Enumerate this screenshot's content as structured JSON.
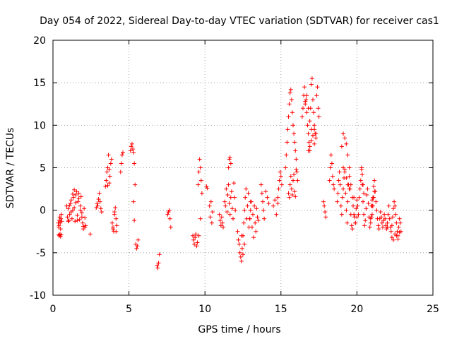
{
  "chart_data": {
    "type": "scatter",
    "title": "Day 054 of 2022, Sidereal Day-to-day VTEC variation (SDTVAR) for receiver cas1",
    "xlabel": "GPS time / hours",
    "ylabel": "SDTVAR / TECUs",
    "xlim": [
      0,
      25
    ],
    "ylim": [
      -10,
      20
    ],
    "xticks": [
      "0",
      "5",
      "10",
      "15",
      "20",
      "25"
    ],
    "yticks": [
      "-10",
      "-5",
      "0",
      "5",
      "10",
      "15",
      "20"
    ],
    "grid": true,
    "marker": "+",
    "color": "#ff0000",
    "series": [
      {
        "name": "SDTVAR",
        "x": [
          0.35,
          0.38,
          0.4,
          0.42,
          0.45,
          0.48,
          0.5,
          0.52,
          0.55,
          0.58,
          0.38,
          0.42,
          0.46,
          0.5,
          0.54,
          0.9,
          0.95,
          1.0,
          1.05,
          1.1,
          1.15,
          1.2,
          1.25,
          1.3,
          1.35,
          1.4,
          1.45,
          1.5,
          1.55,
          1.6,
          1.65,
          1.7,
          1.75,
          1.8,
          1.85,
          1.9,
          1.95,
          2.0,
          2.05,
          2.1,
          2.15,
          1.0,
          1.1,
          1.2,
          1.3,
          1.4,
          1.5,
          1.6,
          1.7,
          1.8,
          1.9,
          2.0,
          2.1,
          2.45,
          2.85,
          2.9,
          2.95,
          3.0,
          3.05,
          3.1,
          3.15,
          3.2,
          3.45,
          3.5,
          3.55,
          3.6,
          3.65,
          3.7,
          3.75,
          3.8,
          3.85,
          3.6,
          3.7,
          3.9,
          3.95,
          4.0,
          4.05,
          4.1,
          4.15,
          4.2,
          3.95,
          4.05,
          4.15,
          4.45,
          4.5,
          4.55,
          4.6,
          5.1,
          5.15,
          5.2,
          5.25,
          5.3,
          5.35,
          5.4,
          5.3,
          5.35,
          5.45,
          5.5,
          5.55,
          5.6,
          6.85,
          6.9,
          6.95,
          7.0,
          7.55,
          7.6,
          7.65,
          7.7,
          7.75,
          9.2,
          9.25,
          9.3,
          9.35,
          9.4,
          9.45,
          9.5,
          9.55,
          9.6,
          9.65,
          9.7,
          9.75,
          9.8,
          9.6,
          9.7,
          10.1,
          10.15,
          10.3,
          10.35,
          10.4,
          10.45,
          10.5,
          10.95,
          11.0,
          11.05,
          11.1,
          11.15,
          11.2,
          11.3,
          11.35,
          11.4,
          11.45,
          11.5,
          11.55,
          11.6,
          11.65,
          11.7,
          11.75,
          11.8,
          11.85,
          11.9,
          11.95,
          12.0,
          11.55,
          11.6,
          11.65,
          11.7,
          12.15,
          12.2,
          12.25,
          12.3,
          12.35,
          12.4,
          12.45,
          12.5,
          12.55,
          12.6,
          12.65,
          12.7,
          12.75,
          12.8,
          12.85,
          12.9,
          12.95,
          13.0,
          12.4,
          12.5,
          12.6,
          12.95,
          13.0,
          13.05,
          13.1,
          13.15,
          13.2,
          13.25,
          13.3,
          13.35,
          13.4,
          13.45,
          13.5,
          13.7,
          13.75,
          13.8,
          13.85,
          13.9,
          14.0,
          14.1,
          14.2,
          14.5,
          14.6,
          14.7,
          14.8,
          14.8,
          14.85,
          14.9,
          14.95,
          15.0,
          15.05,
          15.3,
          15.35,
          15.4,
          15.45,
          15.5,
          15.55,
          15.6,
          15.65,
          15.7,
          15.75,
          15.8,
          15.85,
          15.9,
          15.95,
          16.0,
          16.05,
          16.1,
          15.5,
          15.55,
          15.6,
          15.65,
          15.7,
          15.75,
          15.8,
          15.85,
          15.9,
          15.95,
          16.0,
          16.4,
          16.45,
          16.5,
          16.55,
          16.6,
          16.65,
          16.7,
          16.75,
          16.8,
          16.85,
          16.9,
          16.95,
          17.0,
          17.05,
          17.1,
          17.15,
          17.2,
          17.25,
          17.3,
          17.35,
          17.4,
          17.45,
          17.5,
          16.6,
          16.7,
          16.8,
          16.9,
          17.0,
          17.1,
          17.2,
          17.3,
          16.8,
          16.9,
          17.0,
          17.1,
          17.2,
          17.8,
          17.85,
          17.9,
          17.95,
          18.2,
          18.25,
          18.3,
          18.35,
          18.4,
          18.45,
          18.5,
          18.7,
          18.75,
          18.8,
          18.85,
          18.9,
          18.95,
          19.0,
          19.05,
          19.1,
          19.15,
          19.2,
          19.25,
          19.3,
          19.35,
          19.4,
          19.45,
          19.5,
          19.55,
          19.6,
          19.65,
          19.7,
          19.75,
          19.8,
          19.85,
          19.9,
          19.95,
          20.0,
          19.0,
          19.1,
          19.2,
          19.3,
          19.4,
          19.5,
          19.6,
          19.7,
          19.8,
          19.9,
          20.0,
          19.1,
          19.2,
          19.3,
          19.4,
          19.5,
          20.05,
          20.1,
          20.15,
          20.2,
          20.25,
          20.3,
          20.35,
          20.4,
          20.45,
          20.5,
          20.55,
          20.6,
          20.65,
          20.7,
          20.75,
          20.8,
          20.85,
          20.9,
          20.95,
          21.0,
          20.3,
          20.35,
          20.4,
          20.45,
          20.9,
          20.95,
          21.0,
          21.05,
          21.1,
          21.15,
          21.2,
          21.25,
          21.3,
          21.35,
          21.4,
          21.45,
          21.5,
          21.55,
          21.6,
          21.65,
          21.7,
          21.75,
          21.8,
          21.85,
          21.9,
          21.95,
          22.0,
          21.0,
          21.05,
          21.1,
          21.15,
          22.0,
          22.05,
          22.1,
          22.15,
          22.2,
          22.25,
          22.3,
          22.35,
          22.4,
          22.45,
          22.5,
          22.55,
          22.6,
          22.65,
          22.7,
          22.75,
          22.8,
          22.85,
          22.9,
          22.3,
          22.4,
          22.5,
          22.6,
          22.7,
          22.8
        ],
        "y": [
          -1.5,
          -2.0,
          -1.8,
          -1.2,
          -0.8,
          -1.5,
          -2.2,
          -1.0,
          -0.5,
          -1.3,
          -2.9,
          -3.0,
          -2.8,
          -3.1,
          -2.9,
          0.5,
          -0.8,
          0.2,
          -1.2,
          -0.5,
          0.8,
          1.2,
          -1.0,
          0.0,
          1.5,
          0.3,
          -1.3,
          1.8,
          2.2,
          -0.6,
          1.0,
          2.0,
          -1.1,
          0.5,
          1.6,
          -0.3,
          -1.5,
          -2.2,
          0.2,
          -0.9,
          -1.8,
          -1.3,
          0.6,
          -0.2,
          1.9,
          2.4,
          0.9,
          -1.2,
          1.4,
          0.0,
          -0.8,
          -1.9,
          -2.0,
          -2.8,
          0.3,
          0.8,
          0.5,
          1.3,
          2.0,
          1.0,
          0.2,
          -0.2,
          2.8,
          3.5,
          4.5,
          5.0,
          6.5,
          3.2,
          4.0,
          5.5,
          6.0,
          2.9,
          4.8,
          -1.5,
          -2.0,
          -2.5,
          -0.5,
          0.3,
          -1.0,
          -1.8,
          -2.2,
          -0.2,
          -2.5,
          4.5,
          5.5,
          6.5,
          6.8,
          7.0,
          7.5,
          7.8,
          7.2,
          6.8,
          5.5,
          3.0,
          1.0,
          -1.2,
          -4.0,
          -4.5,
          -4.2,
          -3.5,
          -6.5,
          -6.8,
          -6.2,
          -5.2,
          -0.5,
          -0.2,
          0.0,
          -1.0,
          -2.0,
          -3.0,
          -3.5,
          -4.0,
          -3.2,
          -2.8,
          -4.2,
          -3.8,
          3.0,
          4.5,
          6.0,
          5.0,
          3.5,
          2.0,
          -3.0,
          -1.0,
          2.8,
          2.6,
          0.5,
          -0.8,
          1.0,
          -1.5,
          -0.2,
          -0.5,
          -1.2,
          -1.8,
          -0.8,
          -1.5,
          -2.0,
          1.0,
          0.5,
          2.5,
          -0.2,
          1.8,
          3.0,
          0.8,
          -0.5,
          1.5,
          2.2,
          0.2,
          -1.0,
          3.2,
          1.5,
          0.0,
          5.0,
          6.0,
          6.2,
          5.5,
          -2.5,
          -3.5,
          -4.0,
          -5.0,
          -5.5,
          -6.0,
          -4.5,
          -3.0,
          -1.5,
          0.0,
          1.5,
          2.5,
          -1.0,
          0.5,
          2.0,
          -2.0,
          -1.0,
          1.0,
          -3.0,
          -5.2,
          -4.0,
          -1.0,
          0.0,
          1.0,
          -2.0,
          -0.5,
          -3.2,
          0.5,
          -1.5,
          -2.5,
          0.2,
          -0.8,
          -1.2,
          3.0,
          2.0,
          1.0,
          0.0,
          -1.0,
          2.2,
          1.5,
          0.8,
          0.5,
          1.2,
          -0.5,
          0.8,
          1.5,
          2.5,
          3.5,
          4.5,
          4.0,
          3.0,
          5.0,
          6.5,
          8.0,
          9.5,
          11.0,
          12.5,
          13.8,
          14.2,
          13.0,
          11.5,
          10.0,
          9.0,
          8.0,
          7.0,
          6.0,
          4.5,
          3.5,
          2.0,
          1.5,
          3.0,
          4.0,
          2.5,
          1.8,
          3.5,
          4.2,
          2.2,
          1.6,
          4.8,
          11.0,
          12.0,
          13.5,
          14.5,
          12.5,
          13.0,
          11.5,
          10.0,
          9.0,
          8.0,
          7.0,
          12.0,
          14.8,
          15.5,
          13.0,
          11.5,
          10.0,
          9.0,
          8.5,
          13.5,
          14.5,
          12.0,
          11.0,
          12.8,
          13.5,
          12.0,
          10.5,
          9.5,
          8.8,
          7.8,
          9.0,
          7.0,
          7.5,
          8.2,
          8.8,
          9.5,
          1.0,
          0.5,
          -0.2,
          -0.8,
          3.5,
          5.0,
          6.5,
          5.5,
          4.0,
          3.0,
          2.5,
          1.0,
          2.0,
          3.5,
          4.5,
          3.0,
          0.5,
          -0.5,
          1.5,
          2.5,
          3.8,
          4.8,
          2.0,
          0.0,
          -1.5,
          1.0,
          3.0,
          4.0,
          2.5,
          -0.5,
          -1.8,
          -2.2,
          0.5,
          1.5,
          -0.8,
          -1.5,
          0.2,
          1.2,
          7.5,
          9.0,
          8.5,
          7.8,
          6.5,
          5.0,
          3.0,
          1.5,
          -0.5,
          -1.5,
          -0.8,
          5.0,
          4.5,
          3.8,
          3.0,
          2.5,
          0.5,
          -0.5,
          1.5,
          2.5,
          3.5,
          4.8,
          3.0,
          1.0,
          -0.5,
          -1.8,
          -1.2,
          0.2,
          1.8,
          2.5,
          0.8,
          -0.8,
          -2.0,
          -1.0,
          0.5,
          1.2,
          5.0,
          4.2,
          3.0,
          2.0,
          -1.5,
          -0.8,
          0.5,
          1.5,
          2.8,
          3.5,
          2.2,
          1.0,
          0.0,
          -1.0,
          -1.8,
          -2.2,
          -1.0,
          -0.2,
          -0.8,
          -1.5,
          -2.0,
          -1.2,
          -0.5,
          -1.0,
          -1.8,
          -2.2,
          -2.0,
          -0.5,
          0.5,
          1.5,
          2.2,
          -1.5,
          -0.5,
          0.5,
          -1.0,
          -2.0,
          -2.5,
          -1.8,
          -0.8,
          0.2,
          1.0,
          0.5,
          -0.5,
          -1.5,
          -2.5,
          -3.0,
          -2.0,
          -1.0,
          -1.5,
          -2.5,
          -3.2,
          -3.5,
          -2.8,
          -3.0,
          -3.4,
          -2.6
        ]
      }
    ]
  }
}
